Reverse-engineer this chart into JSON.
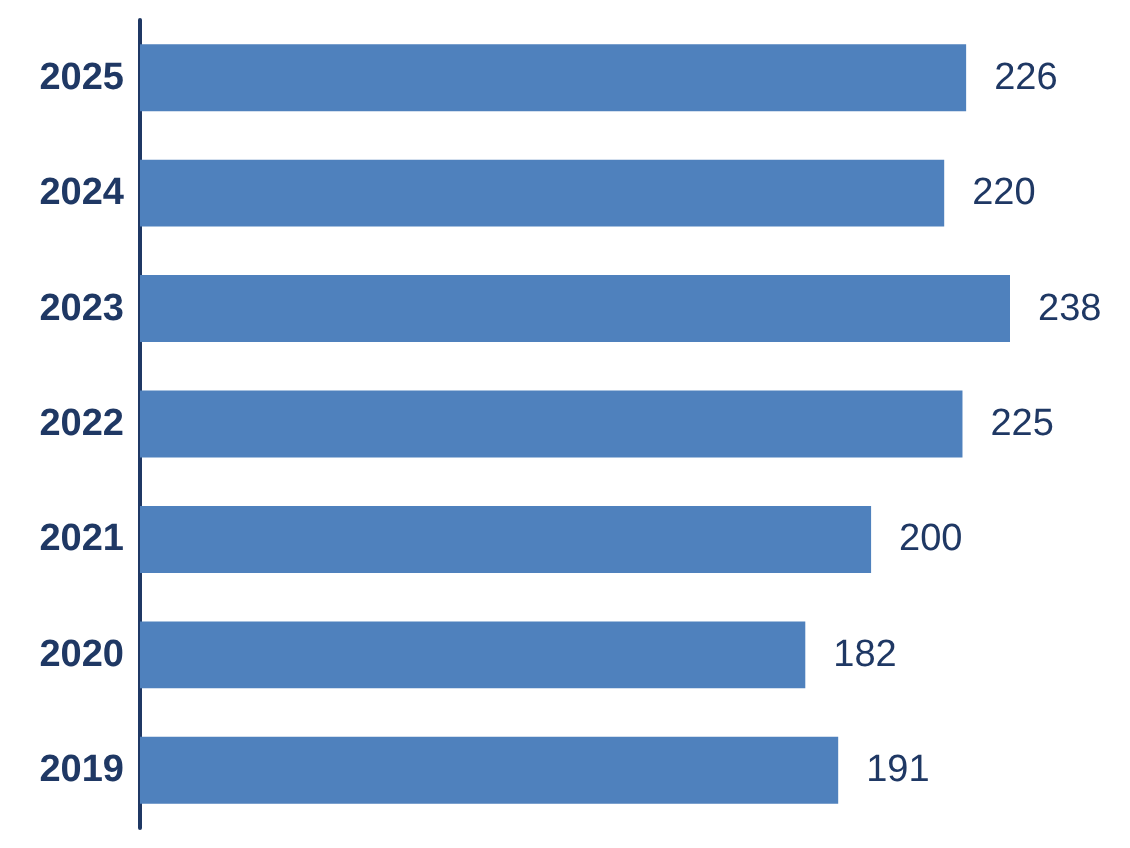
{
  "chart_data": {
    "type": "bar",
    "orientation": "horizontal",
    "categories": [
      "2025",
      "2024",
      "2023",
      "2022",
      "2021",
      "2020",
      "2019"
    ],
    "values": [
      226,
      220,
      238,
      225,
      200,
      182,
      191
    ],
    "color": "#4f81bd",
    "data_labels": true,
    "tick_labels": "y"
  }
}
